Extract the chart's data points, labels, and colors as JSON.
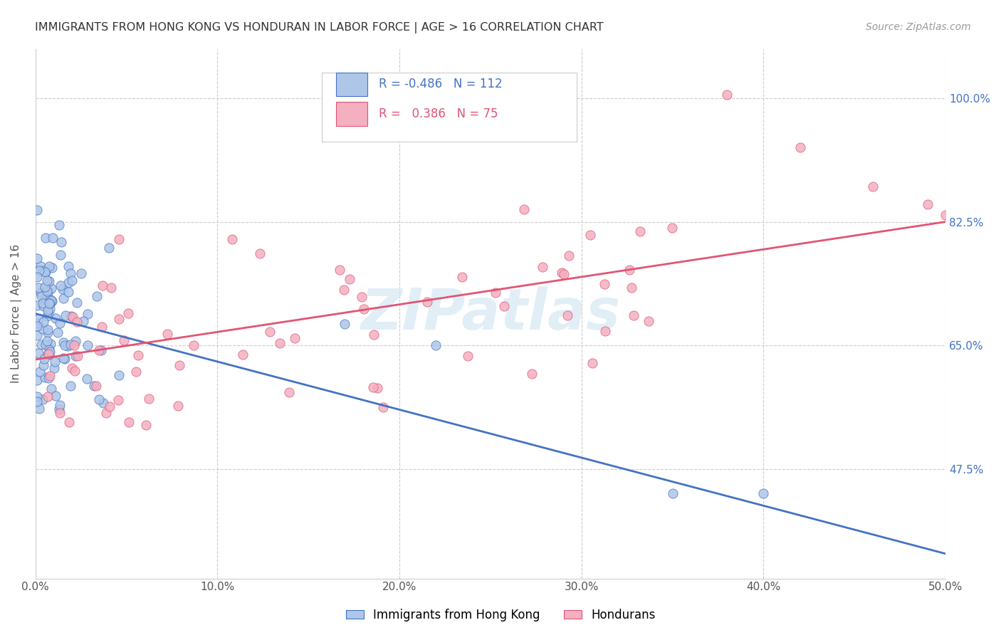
{
  "title": "IMMIGRANTS FROM HONG KONG VS HONDURAN IN LABOR FORCE | AGE > 16 CORRELATION CHART",
  "source": "Source: ZipAtlas.com",
  "ylabel": "In Labor Force | Age > 16",
  "ytick_labels": [
    "100.0%",
    "82.5%",
    "65.0%",
    "47.5%"
  ],
  "ytick_values": [
    1.0,
    0.825,
    0.65,
    0.475
  ],
  "xmin": 0.0,
  "xmax": 0.5,
  "ymin": 0.32,
  "ymax": 1.07,
  "legend_hk_r": "-0.486",
  "legend_hk_n": "112",
  "legend_hon_r": "0.386",
  "legend_hon_n": "75",
  "color_hk": "#aec6e8",
  "color_hon": "#f4afc0",
  "line_color_hk": "#4472c4",
  "line_color_hon": "#e05575",
  "watermark": "ZIPatlas",
  "hk_line_x": [
    0.0,
    0.5
  ],
  "hk_line_y": [
    0.695,
    0.355
  ],
  "hon_line_x": [
    0.0,
    0.5
  ],
  "hon_line_y": [
    0.63,
    0.825
  ]
}
